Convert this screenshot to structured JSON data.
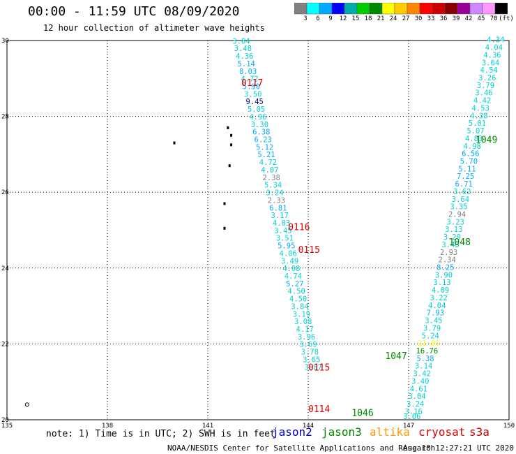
{
  "title": "00:00 - 11:59 UTC 08/09/2020",
  "subtitle": "12 hour collection of altimeter wave heights",
  "color_scale": {
    "colors": [
      "#808080",
      "#00ffff",
      "#00aaff",
      "#0000ff",
      "#00aaaa",
      "#00cc00",
      "#008800",
      "#ffff00",
      "#ffcc00",
      "#ff8800",
      "#ff0000",
      "#cc0000",
      "#880000",
      "#990099",
      "#cc88ff",
      "#ff99ff",
      "#000000"
    ],
    "labels": [
      "3",
      "6",
      "9",
      "12",
      "15",
      "18",
      "21",
      "24",
      "27",
      "30",
      "33",
      "36",
      "39",
      "42",
      "45",
      "70",
      "(ft)"
    ]
  },
  "chart_data": {
    "type": "scatter",
    "xlim": [
      135,
      150
    ],
    "ylim": [
      20,
      30
    ],
    "x_ticks": [
      "135",
      "138",
      "141",
      "144",
      "147",
      "150"
    ],
    "y_ticks": [
      "20",
      "22",
      "24",
      "26",
      "28",
      "30"
    ],
    "grid": true,
    "tracks": [
      {
        "id": "0117",
        "lon": 142.0,
        "lat": 28.8,
        "satellite": "jason2"
      },
      {
        "id": "0116",
        "lon": 143.4,
        "lat": 25.0,
        "satellite": "jason2"
      },
      {
        "id": "0115",
        "lon": 143.7,
        "lat": 24.4,
        "satellite": "jason2"
      },
      {
        "id": "0115",
        "lon": 144.0,
        "lat": 21.3,
        "satellite": "jason2"
      },
      {
        "id": "0114",
        "lon": 144.0,
        "lat": 20.2,
        "satellite": "jason2"
      },
      {
        "id": "1049",
        "lon": 149.0,
        "lat": 27.3,
        "satellite": "jason3"
      },
      {
        "id": "1048",
        "lon": 148.2,
        "lat": 24.6,
        "satellite": "jason3"
      },
      {
        "id": "1047",
        "lon": 146.3,
        "lat": 21.6,
        "satellite": "jason3"
      },
      {
        "id": "1046",
        "lon": 145.3,
        "lat": 20.1,
        "satellite": "jason3"
      }
    ],
    "points": [
      {
        "lon": 142.0,
        "lat": 29.92,
        "v": "3.84",
        "color": "#00d0d0"
      },
      {
        "lon": 142.05,
        "lat": 29.72,
        "v": "3.48",
        "color": "#00d0d0"
      },
      {
        "lon": 142.1,
        "lat": 29.52,
        "v": "4.36",
        "color": "#00d0d0"
      },
      {
        "lon": 142.15,
        "lat": 29.32,
        "v": "5.14",
        "color": "#00aaff"
      },
      {
        "lon": 142.2,
        "lat": 29.12,
        "v": "8.03",
        "color": "#00aaff"
      },
      {
        "lon": 142.25,
        "lat": 28.92,
        "v": "4.72",
        "color": "#00d0d0"
      },
      {
        "lon": 142.3,
        "lat": 28.72,
        "v": "5.90",
        "color": "#00aaff"
      },
      {
        "lon": 142.35,
        "lat": 28.52,
        "v": "3.50",
        "color": "#00d0d0"
      },
      {
        "lon": 142.4,
        "lat": 28.32,
        "v": "9.45",
        "color": "#000088"
      },
      {
        "lon": 142.45,
        "lat": 28.12,
        "v": "5.05",
        "color": "#00d0d0"
      },
      {
        "lon": 142.5,
        "lat": 27.92,
        "v": "4.96",
        "color": "#00d0d0"
      },
      {
        "lon": 142.55,
        "lat": 27.72,
        "v": "3.30",
        "color": "#00d0d0"
      },
      {
        "lon": 142.6,
        "lat": 27.52,
        "v": "6.38",
        "color": "#00aaff"
      },
      {
        "lon": 142.65,
        "lat": 27.32,
        "v": "6.23",
        "color": "#00aaff"
      },
      {
        "lon": 142.7,
        "lat": 27.12,
        "v": "5.12",
        "color": "#00aaff"
      },
      {
        "lon": 142.75,
        "lat": 26.92,
        "v": "5.21",
        "color": "#00aaff"
      },
      {
        "lon": 142.8,
        "lat": 26.72,
        "v": "4.72",
        "color": "#00d0d0"
      },
      {
        "lon": 142.85,
        "lat": 26.52,
        "v": "4.07",
        "color": "#00d0d0"
      },
      {
        "lon": 142.9,
        "lat": 26.32,
        "v": "2.38",
        "color": "#808080"
      },
      {
        "lon": 142.95,
        "lat": 26.12,
        "v": "5.34",
        "color": "#00d0d0"
      },
      {
        "lon": 143.0,
        "lat": 25.92,
        "v": "3.24",
        "color": "#00d0d0"
      },
      {
        "lon": 143.05,
        "lat": 25.72,
        "v": "2.33",
        "color": "#808080"
      },
      {
        "lon": 143.1,
        "lat": 25.52,
        "v": "6.81",
        "color": "#00aaff"
      },
      {
        "lon": 143.15,
        "lat": 25.32,
        "v": "3.17",
        "color": "#00d0d0"
      },
      {
        "lon": 143.2,
        "lat": 25.12,
        "v": "4.03",
        "color": "#00d0d0"
      },
      {
        "lon": 143.25,
        "lat": 24.92,
        "v": "3.45",
        "color": "#00d0d0"
      },
      {
        "lon": 143.3,
        "lat": 24.72,
        "v": "3.51",
        "color": "#00d0d0"
      },
      {
        "lon": 143.35,
        "lat": 24.52,
        "v": "5.95",
        "color": "#00aaff"
      },
      {
        "lon": 143.4,
        "lat": 24.32,
        "v": "4.06",
        "color": "#00d0d0"
      },
      {
        "lon": 143.45,
        "lat": 24.12,
        "v": "3.49",
        "color": "#00d0d0"
      },
      {
        "lon": 143.5,
        "lat": 23.92,
        "v": "4.08",
        "color": "#00d0d0"
      },
      {
        "lon": 143.55,
        "lat": 23.72,
        "v": "4.74",
        "color": "#00d0d0"
      },
      {
        "lon": 143.6,
        "lat": 23.52,
        "v": "5.27",
        "color": "#00aaff"
      },
      {
        "lon": 143.65,
        "lat": 23.32,
        "v": "4.50",
        "color": "#00d0d0"
      },
      {
        "lon": 143.7,
        "lat": 23.12,
        "v": "4.50",
        "color": "#00d0d0"
      },
      {
        "lon": 143.75,
        "lat": 22.92,
        "v": "3.84",
        "color": "#00d0d0"
      },
      {
        "lon": 143.8,
        "lat": 22.72,
        "v": "3.19",
        "color": "#00d0d0"
      },
      {
        "lon": 143.85,
        "lat": 22.52,
        "v": "3.08",
        "color": "#00d0d0"
      },
      {
        "lon": 143.9,
        "lat": 22.32,
        "v": "4.17",
        "color": "#00d0d0"
      },
      {
        "lon": 143.95,
        "lat": 22.12,
        "v": "3.96",
        "color": "#00d0d0"
      },
      {
        "lon": 144.0,
        "lat": 21.92,
        "v": "3.69",
        "color": "#00d0d0"
      },
      {
        "lon": 144.05,
        "lat": 21.72,
        "v": "3.78",
        "color": "#00d0d0"
      },
      {
        "lon": 144.1,
        "lat": 21.52,
        "v": "3.65",
        "color": "#00d0d0"
      },
      {
        "lon": 144.15,
        "lat": 21.32,
        "v": "3.87",
        "color": "#00d0d0"
      },
      {
        "lon": 149.6,
        "lat": 29.95,
        "v": "4.34",
        "color": "#00d0d0"
      },
      {
        "lon": 149.55,
        "lat": 29.75,
        "v": "4.04",
        "color": "#00d0d0"
      },
      {
        "lon": 149.5,
        "lat": 29.55,
        "v": "4.36",
        "color": "#00d0d0"
      },
      {
        "lon": 149.45,
        "lat": 29.35,
        "v": "3.64",
        "color": "#00d0d0"
      },
      {
        "lon": 149.4,
        "lat": 29.15,
        "v": "4.54",
        "color": "#00d0d0"
      },
      {
        "lon": 149.35,
        "lat": 28.95,
        "v": "3.26",
        "color": "#00d0d0"
      },
      {
        "lon": 149.3,
        "lat": 28.75,
        "v": "3.79",
        "color": "#00d0d0"
      },
      {
        "lon": 149.25,
        "lat": 28.55,
        "v": "3.46",
        "color": "#00d0d0"
      },
      {
        "lon": 149.2,
        "lat": 28.35,
        "v": "4.42",
        "color": "#00d0d0"
      },
      {
        "lon": 149.15,
        "lat": 28.15,
        "v": "4.53",
        "color": "#00d0d0"
      },
      {
        "lon": 149.1,
        "lat": 27.95,
        "v": "4.38",
        "color": "#00d0d0"
      },
      {
        "lon": 149.05,
        "lat": 27.75,
        "v": "5.01",
        "color": "#00d0d0"
      },
      {
        "lon": 149.0,
        "lat": 27.55,
        "v": "5.07",
        "color": "#00d0d0"
      },
      {
        "lon": 148.95,
        "lat": 27.35,
        "v": "4.83",
        "color": "#00d0d0"
      },
      {
        "lon": 148.9,
        "lat": 27.15,
        "v": "4.98",
        "color": "#00d0d0"
      },
      {
        "lon": 148.85,
        "lat": 26.95,
        "v": "6.56",
        "color": "#00aaff"
      },
      {
        "lon": 148.8,
        "lat": 26.75,
        "v": "5.70",
        "color": "#00aaff"
      },
      {
        "lon": 148.75,
        "lat": 26.55,
        "v": "5.11",
        "color": "#00aaff"
      },
      {
        "lon": 148.7,
        "lat": 26.35,
        "v": "7.25",
        "color": "#00aaff"
      },
      {
        "lon": 148.65,
        "lat": 26.15,
        "v": "6.71",
        "color": "#00aaff"
      },
      {
        "lon": 148.6,
        "lat": 25.95,
        "v": "3.62",
        "color": "#00d0d0"
      },
      {
        "lon": 148.55,
        "lat": 25.75,
        "v": "3.64",
        "color": "#00d0d0"
      },
      {
        "lon": 148.5,
        "lat": 25.55,
        "v": "3.35",
        "color": "#00d0d0"
      },
      {
        "lon": 148.45,
        "lat": 25.35,
        "v": "2.94",
        "color": "#808080"
      },
      {
        "lon": 148.4,
        "lat": 25.15,
        "v": "3.23",
        "color": "#00d0d0"
      },
      {
        "lon": 148.35,
        "lat": 24.95,
        "v": "3.13",
        "color": "#00d0d0"
      },
      {
        "lon": 148.3,
        "lat": 24.75,
        "v": "3.29",
        "color": "#00d0d0"
      },
      {
        "lon": 148.25,
        "lat": 24.55,
        "v": "3.48",
        "color": "#00d0d0"
      },
      {
        "lon": 148.2,
        "lat": 24.35,
        "v": "2.93",
        "color": "#808080"
      },
      {
        "lon": 148.15,
        "lat": 24.15,
        "v": "2.34",
        "color": "#808080"
      },
      {
        "lon": 148.1,
        "lat": 23.95,
        "v": "8.25",
        "color": "#00aaff"
      },
      {
        "lon": 148.05,
        "lat": 23.75,
        "v": "3.90",
        "color": "#00d0d0"
      },
      {
        "lon": 148.0,
        "lat": 23.55,
        "v": "3.13",
        "color": "#00d0d0"
      },
      {
        "lon": 147.95,
        "lat": 23.35,
        "v": "4.09",
        "color": "#00d0d0"
      },
      {
        "lon": 147.9,
        "lat": 23.15,
        "v": "3.22",
        "color": "#00d0d0"
      },
      {
        "lon": 147.85,
        "lat": 22.95,
        "v": "4.04",
        "color": "#00d0d0"
      },
      {
        "lon": 147.8,
        "lat": 22.75,
        "v": "7.93",
        "color": "#00aaff"
      },
      {
        "lon": 147.75,
        "lat": 22.55,
        "v": "3.45",
        "color": "#00d0d0"
      },
      {
        "lon": 147.7,
        "lat": 22.35,
        "v": "3.79",
        "color": "#00d0d0"
      },
      {
        "lon": 147.65,
        "lat": 22.15,
        "v": "5.24",
        "color": "#00d0d0"
      },
      {
        "lon": 147.6,
        "lat": 21.95,
        "v": "21.01",
        "color": "#ffff00"
      },
      {
        "lon": 147.55,
        "lat": 21.75,
        "v": "16.76",
        "color": "#008800"
      },
      {
        "lon": 147.5,
        "lat": 21.55,
        "v": "5.38",
        "color": "#00aaff"
      },
      {
        "lon": 147.45,
        "lat": 21.35,
        "v": "3.14",
        "color": "#00d0d0"
      },
      {
        "lon": 147.4,
        "lat": 21.15,
        "v": "3.42",
        "color": "#00d0d0"
      },
      {
        "lon": 147.35,
        "lat": 20.95,
        "v": "3.40",
        "color": "#00d0d0"
      },
      {
        "lon": 147.3,
        "lat": 20.75,
        "v": "4.61",
        "color": "#00d0d0"
      },
      {
        "lon": 147.25,
        "lat": 20.55,
        "v": "3.04",
        "color": "#00d0d0"
      },
      {
        "lon": 147.2,
        "lat": 20.35,
        "v": "3.24",
        "color": "#00d0d0"
      },
      {
        "lon": 147.15,
        "lat": 20.15,
        "v": "3.16",
        "color": "#00d0d0"
      },
      {
        "lon": 147.1,
        "lat": 20.02,
        "v": "3.06",
        "color": "#00d0d0"
      }
    ]
  },
  "note": "note: 1) Time is in UTC; 2) SWH is in feet",
  "satellites": [
    {
      "name": "jason2",
      "color": "#0000cc"
    },
    {
      "name": "jason3",
      "color": "#008800"
    },
    {
      "name": "altika",
      "color": "#ff9900"
    },
    {
      "name": "cryosat",
      "color": "#dd0000"
    },
    {
      "name": "s3a",
      "color": "#cc0000"
    }
  ],
  "credit": "NOAA/NESDIS Center for Satellite Applications and Research",
  "timestamp": "Aug 10 12:27:21 UTC 2020"
}
